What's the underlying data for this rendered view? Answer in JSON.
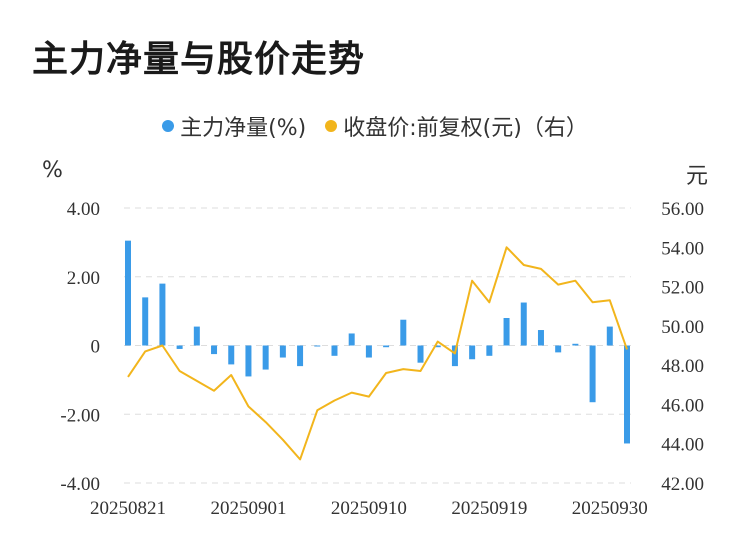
{
  "title": "主力净量与股价走势",
  "legend": {
    "net": "主力净量(%)",
    "price": "收盘价:前复权(元)（右）"
  },
  "colors": {
    "bar": "#3a9be8",
    "line": "#f2b51c",
    "grid": "#dddddd"
  },
  "chart_data": {
    "type": "bar+line",
    "title": "主力净量与股价走势",
    "left_axis": {
      "unit": "%",
      "ylim": [
        -4,
        4
      ],
      "ticks": [
        "4.00",
        "2.00",
        "0",
        "-2.00",
        "-4.00"
      ],
      "tick_values": [
        4,
        2,
        0,
        -2,
        -4
      ]
    },
    "right_axis": {
      "unit": "元",
      "ylim": [
        42,
        56
      ],
      "ticks": [
        "56.00",
        "54.00",
        "52.00",
        "50.00",
        "48.00",
        "46.00",
        "44.00",
        "42.00"
      ],
      "tick_values": [
        56,
        54,
        52,
        50,
        48,
        46,
        44,
        42
      ]
    },
    "x_ticks": [
      {
        "index": 0,
        "label": "20250821"
      },
      {
        "index": 7,
        "label": "20250901"
      },
      {
        "index": 14,
        "label": "20250910"
      },
      {
        "index": 21,
        "label": "20250919"
      },
      {
        "index": 28,
        "label": "20250930"
      }
    ],
    "series": [
      {
        "name": "主力净量(%)",
        "type": "bar",
        "axis": "left",
        "values": [
          3.05,
          1.4,
          1.8,
          -0.1,
          0.55,
          -0.25,
          -0.55,
          -0.9,
          -0.7,
          -0.35,
          -0.6,
          0.0,
          -0.3,
          0.35,
          -0.35,
          -0.05,
          0.75,
          -0.5,
          -0.05,
          -0.6,
          -0.4,
          -0.3,
          0.8,
          1.25,
          0.45,
          -0.2,
          0.05,
          -1.65,
          0.55,
          -2.85
        ]
      },
      {
        "name": "收盘价:前复权(元)（右）",
        "type": "line",
        "axis": "right",
        "values": [
          47.4,
          48.7,
          49.0,
          47.7,
          47.2,
          46.7,
          47.5,
          45.9,
          45.1,
          44.2,
          43.2,
          45.7,
          46.2,
          46.6,
          46.4,
          47.6,
          47.8,
          47.7,
          49.2,
          48.6,
          52.3,
          51.2,
          54.0,
          53.1,
          52.9,
          52.1,
          52.3,
          51.2,
          51.3,
          48.8
        ]
      }
    ]
  }
}
